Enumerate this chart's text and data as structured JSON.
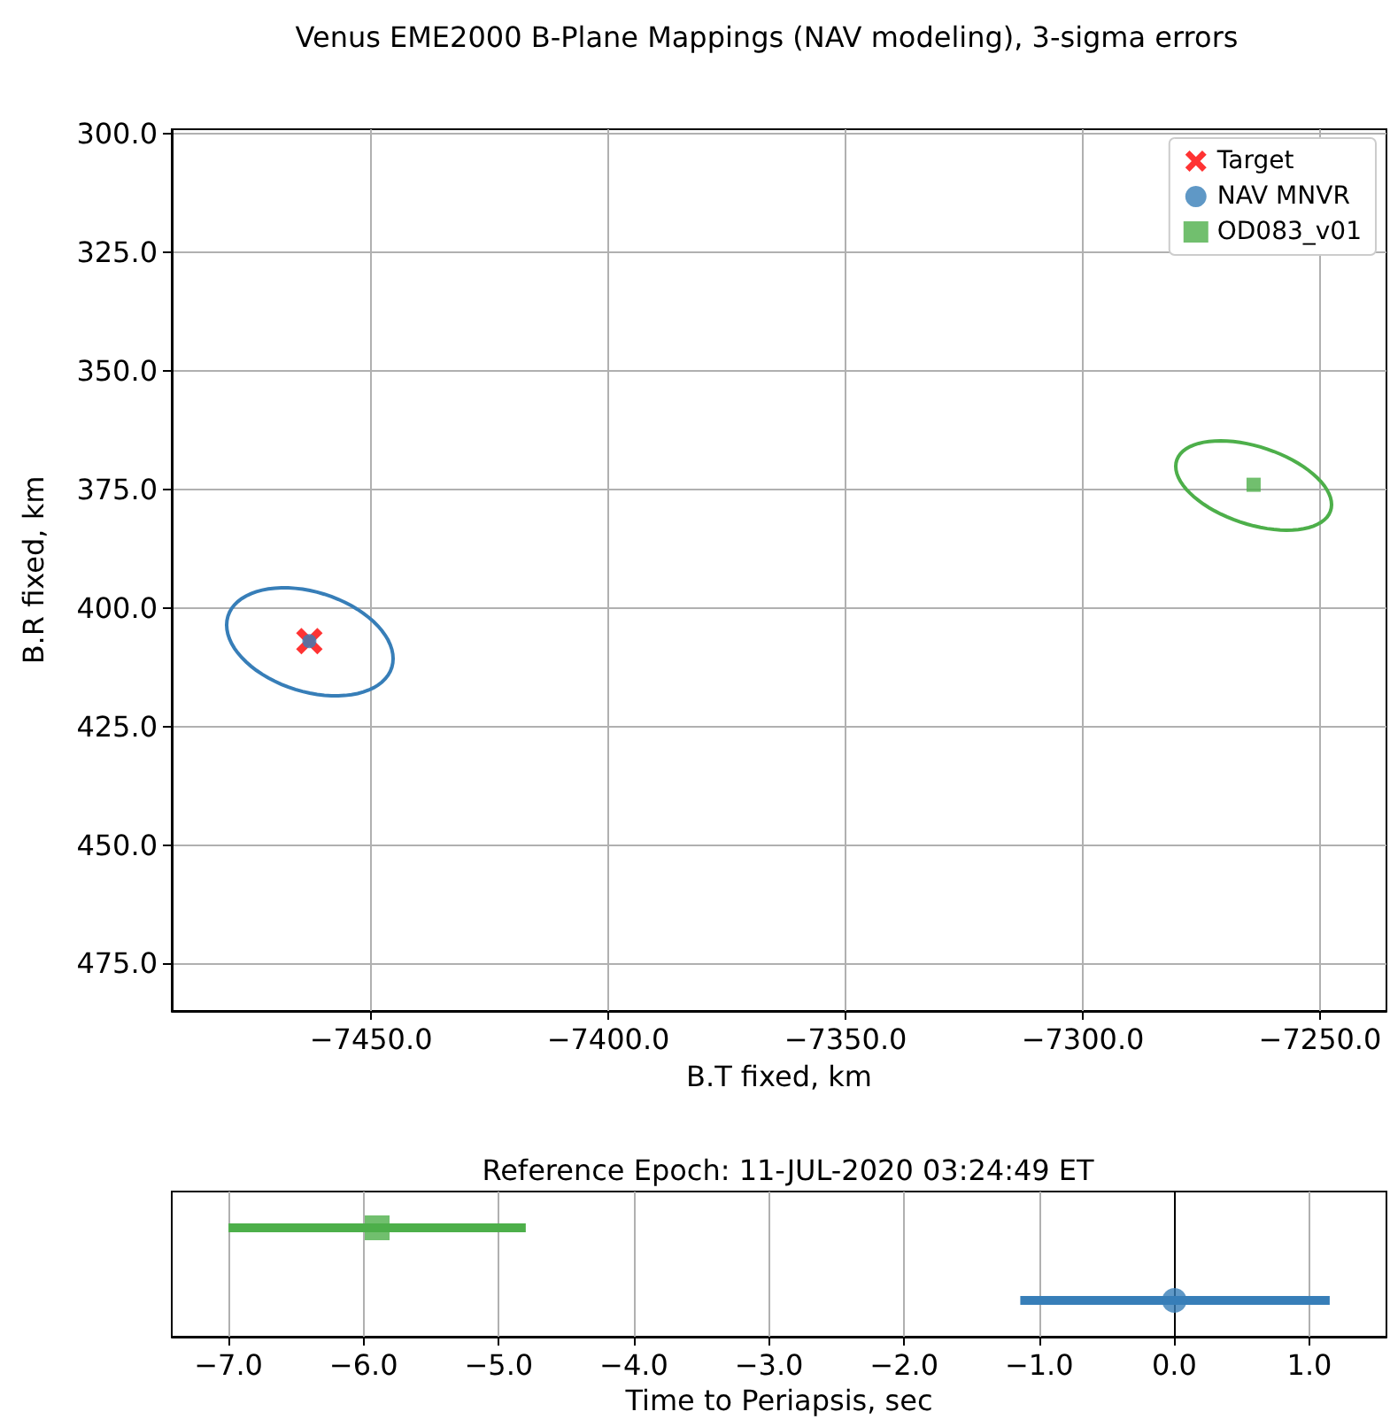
{
  "chart_data": [
    {
      "type": "scatter",
      "title": "Venus EME2000 B-Plane Mappings (NAV modeling), 3-sigma errors",
      "xlabel": "B.T fixed, km",
      "ylabel": "B.R fixed, km",
      "xlim": [
        -7492,
        -7236
      ],
      "xticks": [
        {
          "value": -7450,
          "label": "−7450.0"
        },
        {
          "value": -7400,
          "label": "−7400.0"
        },
        {
          "value": -7350,
          "label": "−7350.0"
        },
        {
          "value": -7300,
          "label": "−7300.0"
        },
        {
          "value": -7250,
          "label": "−7250.0"
        }
      ],
      "ylim": [
        485,
        299
      ],
      "yticks": [
        {
          "value": 300,
          "label": "300.0"
        },
        {
          "value": 325,
          "label": "325.0"
        },
        {
          "value": 350,
          "label": "350.0"
        },
        {
          "value": 375,
          "label": "375.0"
        },
        {
          "value": 400,
          "label": "400.0"
        },
        {
          "value": 425,
          "label": "425.0"
        },
        {
          "value": 450,
          "label": "450.0"
        },
        {
          "value": 475,
          "label": "475.0"
        }
      ],
      "grid": true,
      "legend": "top right",
      "x": [
        -7463,
        -7264
      ],
      "series": [
        {
          "name": "Target",
          "color": "#ff0000",
          "marker": "cross",
          "values": [
            407,
            null
          ]
        },
        {
          "name": "NAV MNVR",
          "color": "#377eb8",
          "marker": "circle",
          "values": [
            407,
            null
          ]
        },
        {
          "name": "OD083_v01",
          "color": "#4daf4a",
          "marker": "square",
          "values": [
            null,
            374
          ]
        }
      ]
    },
    {
      "type": "scatter",
      "orientation": "horizontal",
      "title": "Reference Epoch: 11-JUL-2020 03:24:49 ET",
      "xlabel": "Time to Periapsis, sec",
      "categories": [
        null,
        null
      ],
      "xlim": [
        -7.42,
        1.57
      ],
      "xticks": [
        {
          "value": -7,
          "label": "−7.0"
        },
        {
          "value": -6,
          "label": "−6.0"
        },
        {
          "value": -5,
          "label": "−5.0"
        },
        {
          "value": -4,
          "label": "−4.0"
        },
        {
          "value": -3,
          "label": "−3.0"
        },
        {
          "value": -2,
          "label": "−2.0"
        },
        {
          "value": -1,
          "label": "−1.0"
        },
        {
          "value": 0,
          "label": "0.0"
        },
        {
          "value": 1,
          "label": "1.0"
        }
      ],
      "grid": "x",
      "tick_labels": "x",
      "series": [
        {
          "color": "#4daf4a",
          "marker": "square",
          "values": [
            -5.9,
            null
          ],
          "errors": [
            [
              -7.0,
              -4.8
            ],
            null
          ]
        },
        {
          "color": "#377eb8",
          "marker": "circle",
          "values": [
            null,
            0
          ],
          "errors": [
            null,
            [
              -1.14,
              1.15
            ]
          ]
        }
      ]
    }
  ]
}
